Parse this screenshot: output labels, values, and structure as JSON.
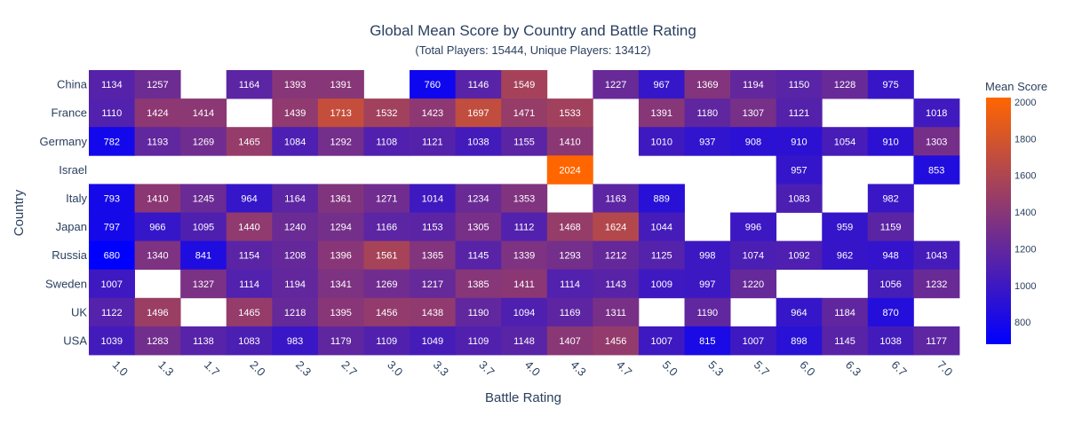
{
  "chart_data": {
    "type": "heatmap",
    "title": "Global Mean Score by Country and Battle Rating",
    "subtitle": "(Total Players: 15444, Unique Players: 13412)",
    "xlabel": "Battle Rating",
    "ylabel": "Country",
    "colorbar_title": "Mean Score",
    "colorbar_ticks": [
      "800",
      "1000",
      "1200",
      "1400",
      "1600",
      "1800",
      "2000"
    ],
    "colorbar_tick_values": [
      800,
      1000,
      1200,
      1400,
      1600,
      1800,
      2000
    ],
    "zmin": 680,
    "zmax": 2024,
    "colorscale": [
      "#0000ff",
      "#ff6600"
    ],
    "x": [
      "1.0",
      "1.3",
      "1.7",
      "2.0",
      "2.3",
      "2.7",
      "3.0",
      "3.3",
      "3.7",
      "4.0",
      "4.3",
      "4.7",
      "5.0",
      "5.3",
      "5.7",
      "6.0",
      "6.3",
      "6.7",
      "7.0"
    ],
    "y": [
      "China",
      "France",
      "Germany",
      "Israel",
      "Italy",
      "Japan",
      "Russia",
      "Sweden",
      "UK",
      "USA"
    ],
    "z": [
      [
        1134,
        1257,
        null,
        1164,
        1393,
        1391,
        null,
        760,
        1146,
        1549,
        null,
        1227,
        967,
        1369,
        1194,
        1150,
        1228,
        975,
        null
      ],
      [
        1110,
        1424,
        1414,
        null,
        1439,
        1713,
        1532,
        1423,
        1697,
        1471,
        1533,
        null,
        1391,
        1180,
        1307,
        1121,
        null,
        null,
        1018
      ],
      [
        782,
        1193,
        1269,
        1465,
        1084,
        1292,
        1108,
        1121,
        1038,
        1155,
        1410,
        null,
        1010,
        937,
        908,
        910,
        1054,
        910,
        1303
      ],
      [
        null,
        null,
        null,
        null,
        null,
        null,
        null,
        null,
        null,
        null,
        2024,
        null,
        null,
        null,
        null,
        957,
        null,
        null,
        853
      ],
      [
        793,
        1410,
        1245,
        964,
        1164,
        1361,
        1271,
        1014,
        1234,
        1353,
        null,
        1163,
        889,
        null,
        null,
        1083,
        null,
        982,
        null
      ],
      [
        797,
        966,
        1095,
        1440,
        1240,
        1294,
        1166,
        1153,
        1305,
        1112,
        1468,
        1624,
        1044,
        null,
        996,
        null,
        959,
        1159,
        null
      ],
      [
        680,
        1340,
        841,
        1154,
        1208,
        1396,
        1561,
        1365,
        1145,
        1339,
        1293,
        1212,
        1125,
        998,
        1074,
        1092,
        962,
        948,
        1043
      ],
      [
        1007,
        null,
        1327,
        1114,
        1194,
        1341,
        1269,
        1217,
        1385,
        1411,
        1114,
        1143,
        1009,
        997,
        1220,
        null,
        null,
        1056,
        1232
      ],
      [
        1122,
        1496,
        null,
        1465,
        1218,
        1395,
        1456,
        1438,
        1190,
        1094,
        1169,
        1311,
        null,
        1190,
        null,
        964,
        1184,
        870,
        null
      ],
      [
        1039,
        1283,
        1138,
        1083,
        983,
        1179,
        1109,
        1049,
        1109,
        1148,
        1407,
        1456,
        1007,
        815,
        1007,
        898,
        1145,
        1038,
        1177
      ]
    ]
  }
}
